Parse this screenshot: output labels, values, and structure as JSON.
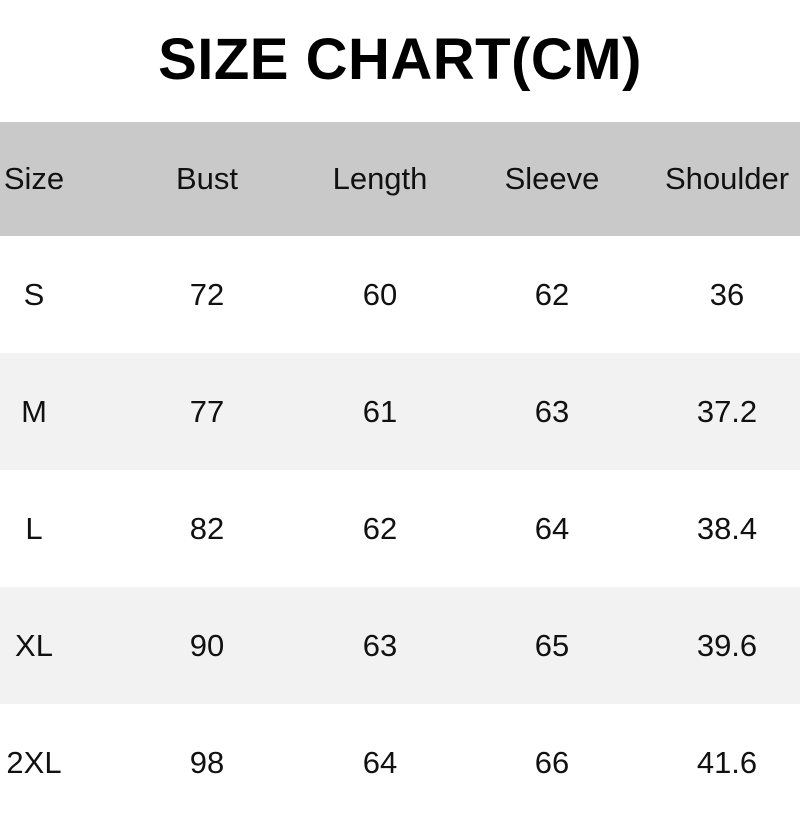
{
  "title": "SIZE CHART(CM)",
  "table": {
    "headers": [
      "Size",
      "Bust",
      "Length",
      "Sleeve",
      "Shoulder"
    ],
    "rows": [
      [
        "S",
        "72",
        "60",
        "62",
        "36"
      ],
      [
        "M",
        "77",
        "61",
        "63",
        "37.2"
      ],
      [
        "L",
        "82",
        "62",
        "64",
        "38.4"
      ],
      [
        "XL",
        "90",
        "63",
        "65",
        "39.6"
      ],
      [
        "2XL",
        "98",
        "64",
        "66",
        "41.6"
      ]
    ]
  },
  "colors": {
    "header_bg": "#c9c9c9",
    "alt_row_bg": "#f2f2f2"
  }
}
